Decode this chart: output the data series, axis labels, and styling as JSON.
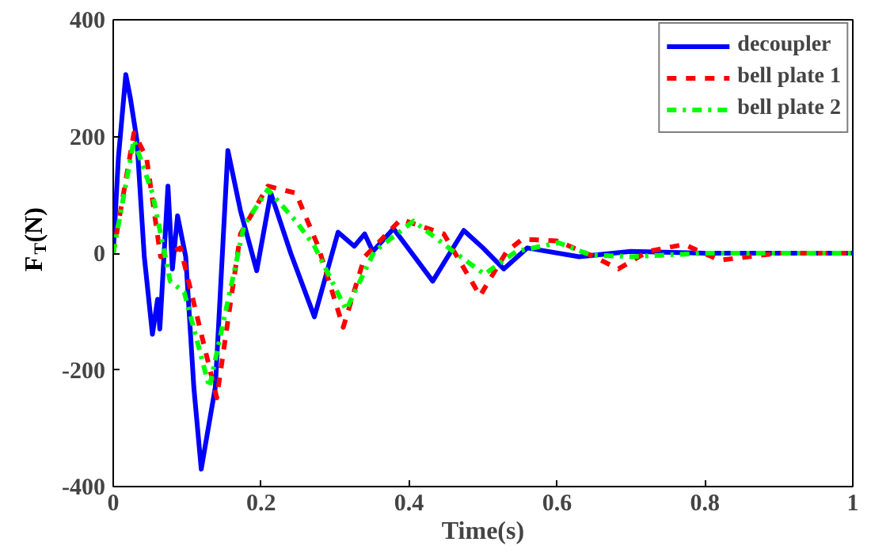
{
  "chart_data": {
    "type": "line",
    "xlabel": "Time(s)",
    "ylabel": "F$_{T}$(N)",
    "xlim": [
      0,
      1
    ],
    "ylim": [
      -400,
      400
    ],
    "xticks": [
      0,
      0.2,
      0.4,
      0.6,
      0.8,
      1
    ],
    "yticks": [
      -400,
      -200,
      0,
      200,
      400
    ],
    "grid": false,
    "legend": "top right",
    "series": [
      {
        "name": "decoupler",
        "color": "#0000ff",
        "line_style": "solid",
        "x": [
          0,
          0.007,
          0.017,
          0.023,
          0.032,
          0.042,
          0.053,
          0.06,
          0.063,
          0.074,
          0.08,
          0.087,
          0.098,
          0.109,
          0.119,
          0.138,
          0.155,
          0.172,
          0.194,
          0.213,
          0.24,
          0.272,
          0.304,
          0.326,
          0.34,
          0.351,
          0.379,
          0.432,
          0.474,
          0.5,
          0.528,
          0.56,
          0.63,
          0.7,
          0.8,
          0.9,
          1
        ],
        "values": [
          0,
          164,
          306,
          267,
          194,
          -6,
          -139,
          -79,
          -130,
          115,
          -27,
          64,
          -6,
          -230,
          -370,
          -230,
          176,
          73,
          -30,
          103,
          0,
          -109,
          36,
          12,
          33,
          3,
          42,
          -48,
          39,
          9,
          -27,
          9,
          -6,
          3,
          0,
          0,
          0
        ]
      },
      {
        "name": "bell plate 1",
        "color": "#ff0000",
        "line_style": "dashed",
        "x": [
          0,
          0.028,
          0.045,
          0.064,
          0.091,
          0.14,
          0.172,
          0.209,
          0.247,
          0.277,
          0.311,
          0.34,
          0.389,
          0.447,
          0.496,
          0.532,
          0.553,
          0.6,
          0.645,
          0.683,
          0.723,
          0.772,
          0.82,
          0.9,
          1
        ],
        "values": [
          0,
          206,
          164,
          -6,
          9,
          -248,
          33,
          115,
          103,
          12,
          -127,
          -6,
          58,
          33,
          -73,
          3,
          24,
          21,
          -3,
          -27,
          3,
          15,
          -12,
          0,
          0
        ]
      },
      {
        "name": "bell plate 2",
        "color": "#00ff00",
        "line_style": "dashdot",
        "x": [
          0,
          0.028,
          0.053,
          0.077,
          0.096,
          0.13,
          0.177,
          0.209,
          0.247,
          0.272,
          0.315,
          0.353,
          0.406,
          0.46,
          0.502,
          0.545,
          0.602,
          0.645,
          0.7,
          0.8,
          1
        ],
        "values": [
          0,
          194,
          103,
          -48,
          -67,
          -230,
          48,
          109,
          55,
          12,
          -97,
          3,
          55,
          3,
          -36,
          3,
          18,
          -3,
          -6,
          0,
          0
        ]
      }
    ]
  }
}
